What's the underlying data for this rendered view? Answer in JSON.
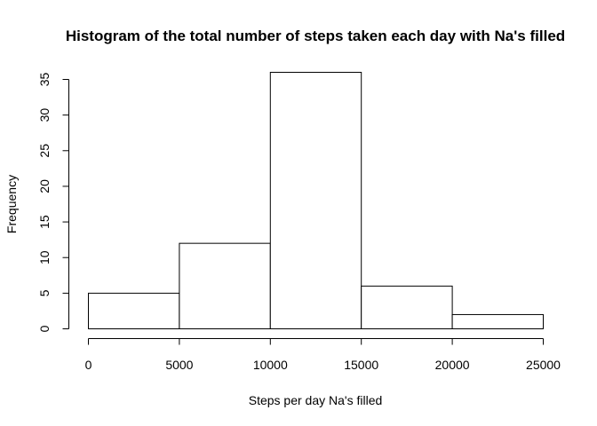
{
  "chart_data": {
    "type": "bar",
    "title": "Histogram of the total number of steps taken each day with Na's filled",
    "xlabel": "Steps per day Na's filled",
    "ylabel": "Frequency",
    "bins": [
      [
        0,
        5000
      ],
      [
        5000,
        10000
      ],
      [
        10000,
        15000
      ],
      [
        15000,
        20000
      ],
      [
        20000,
        25000
      ]
    ],
    "values": [
      5,
      12,
      36,
      6,
      2
    ],
    "xlim": [
      0,
      25000
    ],
    "ylim": [
      0,
      35
    ],
    "xticks": [
      0,
      5000,
      10000,
      15000,
      20000,
      25000
    ],
    "yticks": [
      0,
      5,
      10,
      15,
      20,
      25,
      30,
      35
    ],
    "grid": false,
    "bar_fill": "#ffffff",
    "bar_stroke": "#000000"
  }
}
